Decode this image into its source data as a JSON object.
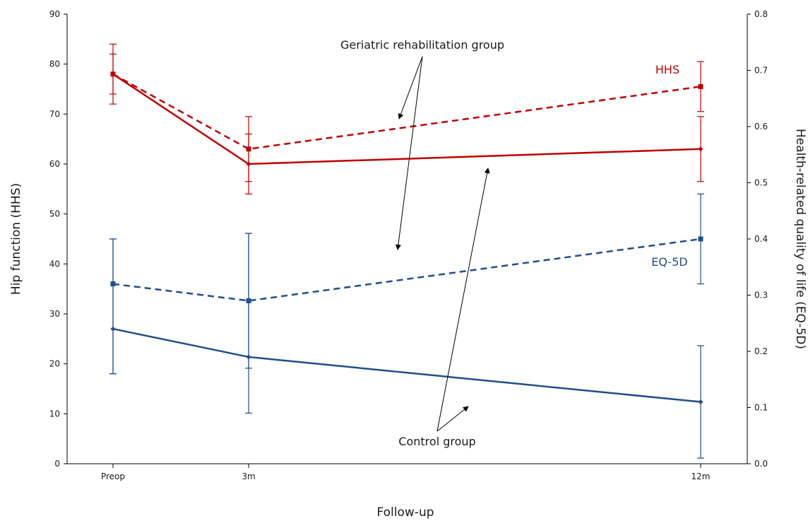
{
  "chart_data": {
    "type": "line",
    "categories": [
      "Preop",
      "3m",
      "12m"
    ],
    "x_values": [
      0,
      3,
      12
    ],
    "xlabel": "Follow-up",
    "ylabel_left": "Hip function (HHS)",
    "ylabel_right": "Health-related quality of life (EQ-5D)",
    "ylim_left": [
      0,
      90
    ],
    "ylim_right": [
      0.0,
      0.8
    ],
    "yticks_left": [
      "0",
      "10",
      "20",
      "30",
      "40",
      "50",
      "60",
      "70",
      "80",
      "90"
    ],
    "yticks_right": [
      "0.0",
      "0.1",
      "0.2",
      "0.3",
      "0.4",
      "0.5",
      "0.6",
      "0.7",
      "0.8"
    ],
    "grid": false,
    "series": [
      {
        "measure": "HHS",
        "group": "Geriatric rehabilitation group",
        "axis": "left",
        "style": "dashed",
        "color": "#c00000",
        "marker": "square",
        "values": [
          78,
          63,
          75.5
        ],
        "err_low": [
          74,
          56.5,
          70.5
        ],
        "err_high": [
          84,
          69.5,
          80.5
        ]
      },
      {
        "measure": "HHS",
        "group": "Control group",
        "axis": "left",
        "style": "solid",
        "color": "#c00000",
        "marker": "diamond",
        "values": [
          78,
          60,
          63
        ],
        "err_low": [
          72,
          54,
          56.5
        ],
        "err_high": [
          82,
          66,
          69.5
        ]
      },
      {
        "measure": "EQ-5D",
        "group": "Geriatric rehabilitation group",
        "axis": "right",
        "style": "dashed",
        "color": "#1f4e8c",
        "marker": "square",
        "values": [
          0.32,
          0.29,
          0.4
        ],
        "err_low": [
          0.16,
          0.09,
          0.32
        ],
        "err_high": [
          0.4,
          0.41,
          0.48
        ]
      },
      {
        "measure": "EQ-5D",
        "group": "Control group",
        "axis": "right",
        "style": "solid",
        "color": "#1f4e8c",
        "marker": "diamond",
        "values": [
          0.24,
          0.19,
          0.11
        ],
        "err_low": [
          0.16,
          0.17,
          0.01
        ],
        "err_high": [
          0.4,
          0.41,
          0.21
        ]
      }
    ],
    "series_labels": [
      {
        "text": "HHS",
        "color": "#c00000"
      },
      {
        "text": "EQ-5D",
        "color": "#1f4e8c"
      }
    ],
    "annotations": [
      {
        "text": "Geriatric rehabilitation group"
      },
      {
        "text": "Control group"
      }
    ]
  }
}
